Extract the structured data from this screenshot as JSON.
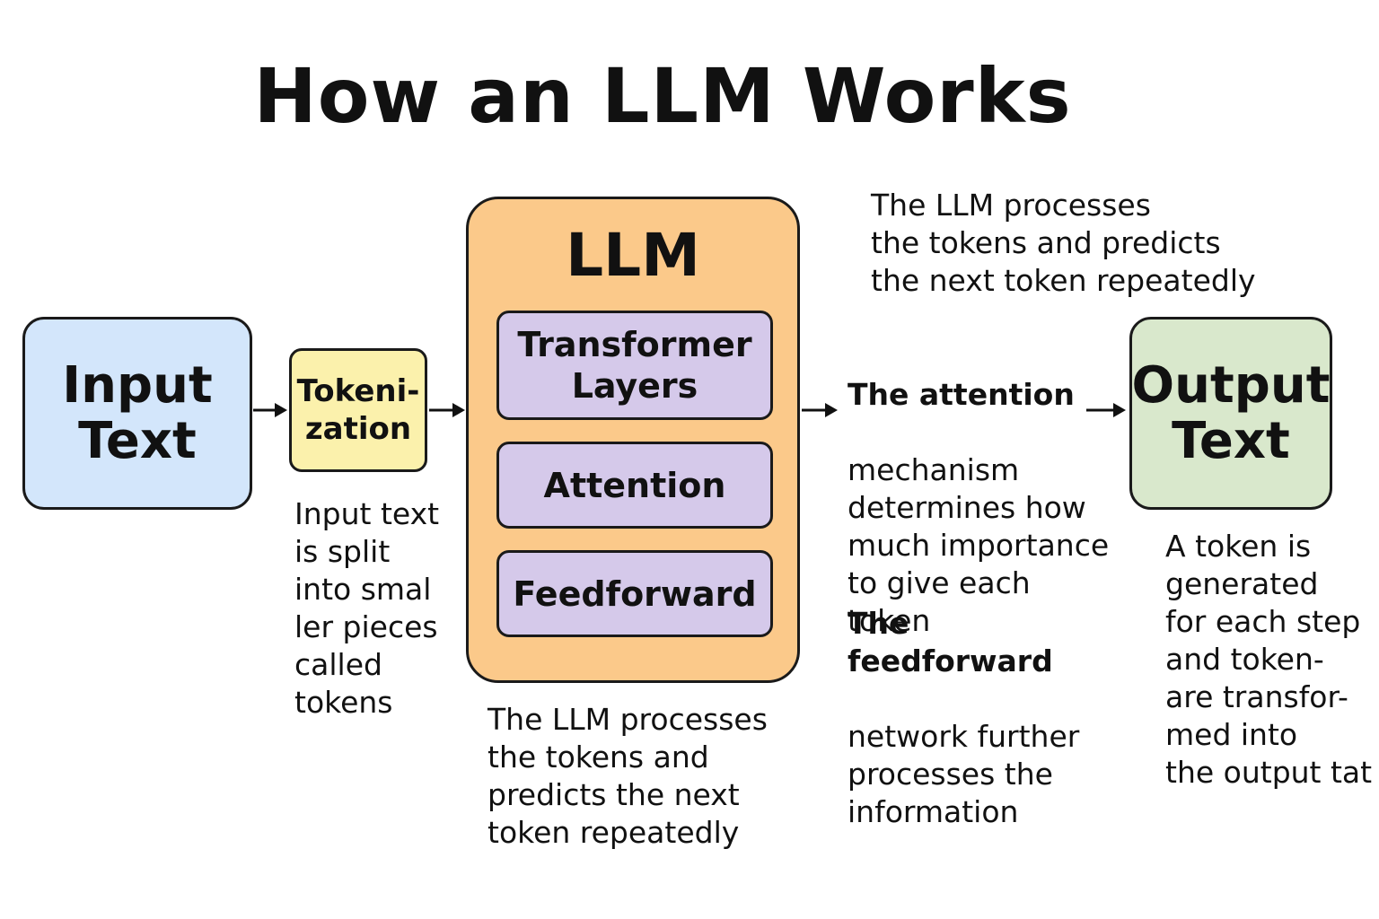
{
  "title": "How an LLM Works",
  "colors": {
    "input": "#d3e6fb",
    "tokenization": "#fbf1ac",
    "llm": "#fbc98a",
    "inner": "#d5c9ea",
    "output": "#d9e8cc",
    "stroke": "#1a1a1a"
  },
  "input": {
    "label": "Input\nText"
  },
  "tokenization": {
    "label": "Tokeni-\nzation",
    "description": "Input text\nis split\ninto smal\nler pieces\ncalled\ntokens"
  },
  "llm": {
    "label": "LLM",
    "layers": [
      "Transformer\nLayers",
      "Attention",
      "Feedforward"
    ],
    "caption_top": "The LLM processes\nthe tokens and predicts\nthe next token repeatedly",
    "caption_bottom": "The LLM processes\nthe tokens and\npredicts the next\ntoken repeatedly"
  },
  "attention_note": {
    "heading": "The attention",
    "body": "mechanism\ndetermines how\nmuch importance\nto give each token"
  },
  "feedforward_note": {
    "heading": "The feedforward",
    "body": "network further\nprocesses the\ninformation"
  },
  "output": {
    "label": "Output\nText",
    "description": "A token is\ngenerated\nfor each step\nand token-\nare transfor-\nmed into\nthe output tat"
  }
}
